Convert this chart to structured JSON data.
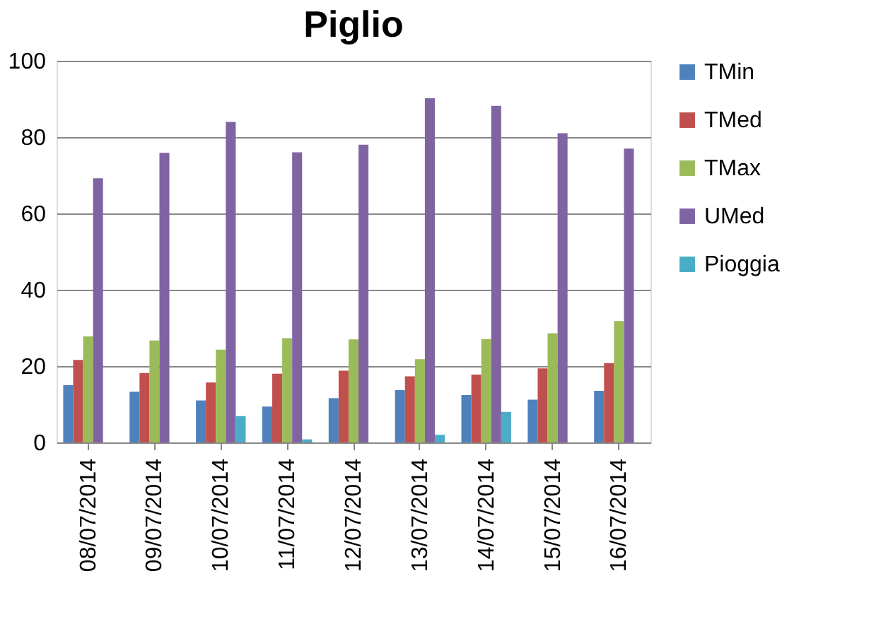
{
  "chart_data": {
    "type": "bar",
    "title": "Piglio",
    "categories": [
      "08/07/2014",
      "09/07/2014",
      "10/07/2014",
      "11/07/2014",
      "12/07/2014",
      "13/07/2014",
      "14/07/2014",
      "15/07/2014",
      "16/07/2014"
    ],
    "series": [
      {
        "name": "TMin",
        "color": "#4f81bd",
        "values": [
          15,
          13.3,
          11,
          9.4,
          11.6,
          13.7,
          12.4,
          11.2,
          13.5
        ]
      },
      {
        "name": "TMed",
        "color": "#c0504d",
        "values": [
          21.6,
          18.2,
          15.7,
          18,
          18.8,
          17.3,
          17.8,
          19.4,
          20.8
        ]
      },
      {
        "name": "TMax",
        "color": "#9bbb59",
        "values": [
          27.8,
          26.7,
          24.3,
          27.3,
          27,
          21.8,
          27.1,
          28.6,
          31.8
        ]
      },
      {
        "name": "UMed",
        "color": "#8064a2",
        "values": [
          69.2,
          75.9,
          84,
          76,
          78,
          90.2,
          88.2,
          81,
          77
        ]
      },
      {
        "name": "Pioggia",
        "color": "#4bacc6",
        "values": [
          0,
          0,
          6.9,
          0.8,
          0,
          2,
          8,
          0,
          0
        ]
      }
    ],
    "ylim": [
      0,
      100
    ],
    "yticks": [
      0,
      20,
      40,
      60,
      80,
      100
    ],
    "grid": "y",
    "legend": "right"
  }
}
